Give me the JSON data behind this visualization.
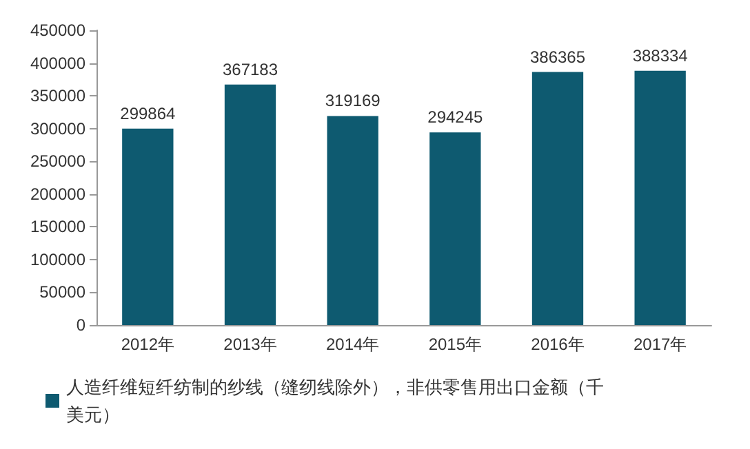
{
  "chart_data": {
    "type": "bar",
    "categories": [
      "2012年",
      "2013年",
      "2014年",
      "2015年",
      "2016年",
      "2017年"
    ],
    "series": [
      {
        "name": "人造纤维短纤纺制的纱线（缝纫线除外），非供零售用出口金额（千美元）",
        "color": "#0e5a70",
        "values": [
          299864,
          367183,
          319169,
          294245,
          386365,
          388334
        ]
      }
    ],
    "ylim": [
      0,
      450000
    ],
    "yticks": [
      0,
      50000,
      100000,
      150000,
      200000,
      250000,
      300000,
      350000,
      400000,
      450000
    ],
    "grid": false,
    "legend": "bottom",
    "data_labels": true
  }
}
